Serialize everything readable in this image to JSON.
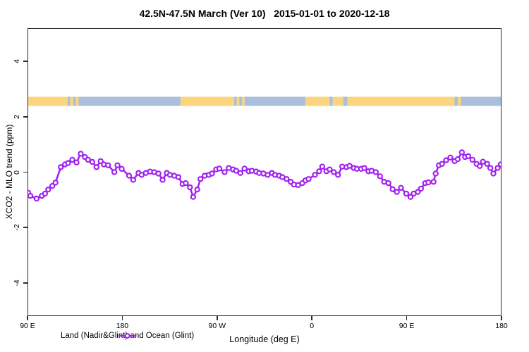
{
  "title": "42.5N-47.5N March (Ver 10)   2015-01-01 to 2020-12-18",
  "legend": {
    "label": "Land (Nadir&Glint) and Ocean (Glint)"
  },
  "colors": {
    "series": "#A020F0",
    "marker_fill": "#ffffff",
    "land_band": "#FAD57E",
    "ocean_band": "#A9BFDC",
    "axis": "#2d2d2d",
    "background": "#ffffff"
  },
  "chart_data": {
    "type": "line",
    "title": "42.5N-47.5N March (Ver 10)   2015-01-01 to 2020-12-18",
    "xlabel": "Longitude (deg E)",
    "ylabel": "XCO2 - MLO trend (ppm)",
    "xlim": [
      90,
      540
    ],
    "ylim": [
      -5.2,
      5.2
    ],
    "grid": false,
    "legend_position": "bottom-left-inside",
    "x_ticks": [
      {
        "pos": 90,
        "label": "90 E"
      },
      {
        "pos": 180,
        "label": "180"
      },
      {
        "pos": 270,
        "label": "90 W"
      },
      {
        "pos": 360,
        "label": "0"
      },
      {
        "pos": 450,
        "label": "90 E"
      },
      {
        "pos": 540,
        "label": "180"
      }
    ],
    "y_ticks": [
      {
        "pos": -4,
        "label": "-4"
      },
      {
        "pos": -2,
        "label": "-2"
      },
      {
        "pos": 0,
        "label": "0"
      },
      {
        "pos": 2,
        "label": "2"
      },
      {
        "pos": 4,
        "label": "4"
      }
    ],
    "surface_type_band": {
      "center_value": 2.57,
      "half_height_value": 0.165,
      "legend": {
        "land": "land_band",
        "ocean": "ocean_band"
      },
      "segments": [
        {
          "from": 90,
          "to": 127.5,
          "type": "land"
        },
        {
          "from": 127.5,
          "to": 130,
          "type": "ocean"
        },
        {
          "from": 130,
          "to": 133,
          "type": "land"
        },
        {
          "from": 133,
          "to": 135.5,
          "type": "ocean"
        },
        {
          "from": 135.5,
          "to": 138,
          "type": "land"
        },
        {
          "from": 138,
          "to": 235,
          "type": "ocean"
        },
        {
          "from": 235,
          "to": 286,
          "type": "land"
        },
        {
          "from": 286,
          "to": 288.5,
          "type": "ocean"
        },
        {
          "from": 288.5,
          "to": 291,
          "type": "land"
        },
        {
          "from": 291,
          "to": 293.5,
          "type": "ocean"
        },
        {
          "from": 293.5,
          "to": 296,
          "type": "land"
        },
        {
          "from": 296,
          "to": 354,
          "type": "ocean"
        },
        {
          "from": 354,
          "to": 377,
          "type": "land"
        },
        {
          "from": 377,
          "to": 380,
          "type": "ocean"
        },
        {
          "from": 380,
          "to": 390,
          "type": "land"
        },
        {
          "from": 390,
          "to": 394,
          "type": "ocean"
        },
        {
          "from": 394,
          "to": 496,
          "type": "land"
        },
        {
          "from": 496,
          "to": 499,
          "type": "ocean"
        },
        {
          "from": 499,
          "to": 502,
          "type": "land"
        },
        {
          "from": 502,
          "to": 540,
          "type": "ocean"
        }
      ]
    },
    "series": [
      {
        "name": "Land (Nadir&Glint) and Ocean (Glint)",
        "marker": "open-circle",
        "points": [
          [
            90,
            -0.75
          ],
          [
            92,
            -0.86
          ],
          [
            98,
            -0.96
          ],
          [
            103,
            -0.86
          ],
          [
            106,
            -0.78
          ],
          [
            109,
            -0.63
          ],
          [
            113,
            -0.5
          ],
          [
            116,
            -0.38
          ],
          [
            121,
            0.18
          ],
          [
            125,
            0.28
          ],
          [
            128,
            0.33
          ],
          [
            132,
            0.45
          ],
          [
            136,
            0.35
          ],
          [
            140,
            0.67
          ],
          [
            144,
            0.55
          ],
          [
            147,
            0.45
          ],
          [
            151,
            0.37
          ],
          [
            155,
            0.18
          ],
          [
            159,
            0.4
          ],
          [
            162,
            0.28
          ],
          [
            166,
            0.25
          ],
          [
            172,
            0.0
          ],
          [
            175,
            0.25
          ],
          [
            179,
            0.12
          ],
          [
            186,
            -0.13
          ],
          [
            190,
            -0.28
          ],
          [
            195,
            -0.03
          ],
          [
            198,
            -0.1
          ],
          [
            202,
            -0.03
          ],
          [
            206,
            0.02
          ],
          [
            210,
            0.0
          ],
          [
            214,
            -0.05
          ],
          [
            218,
            -0.28
          ],
          [
            222,
            -0.03
          ],
          [
            225,
            -0.1
          ],
          [
            229,
            -0.13
          ],
          [
            233,
            -0.18
          ],
          [
            237,
            -0.43
          ],
          [
            240,
            -0.4
          ],
          [
            244,
            -0.55
          ],
          [
            247,
            -0.9
          ],
          [
            251,
            -0.63
          ],
          [
            254,
            -0.25
          ],
          [
            258,
            -0.13
          ],
          [
            262,
            -0.1
          ],
          [
            265,
            -0.05
          ],
          [
            269,
            0.1
          ],
          [
            272,
            0.13
          ],
          [
            277,
            0.0
          ],
          [
            281,
            0.15
          ],
          [
            285,
            0.1
          ],
          [
            288,
            0.05
          ],
          [
            292,
            -0.03
          ],
          [
            296,
            0.13
          ],
          [
            300,
            0.03
          ],
          [
            303,
            0.05
          ],
          [
            307,
            0.02
          ],
          [
            310,
            -0.03
          ],
          [
            314,
            -0.05
          ],
          [
            318,
            -0.1
          ],
          [
            322,
            -0.03
          ],
          [
            325,
            -0.1
          ],
          [
            329,
            -0.13
          ],
          [
            332,
            -0.18
          ],
          [
            336,
            -0.25
          ],
          [
            340,
            -0.35
          ],
          [
            343,
            -0.45
          ],
          [
            347,
            -0.47
          ],
          [
            351,
            -0.4
          ],
          [
            354,
            -0.3
          ],
          [
            357,
            -0.25
          ],
          [
            363,
            -0.1
          ],
          [
            367,
            0.03
          ],
          [
            370,
            0.2
          ],
          [
            374,
            0.03
          ],
          [
            377,
            0.1
          ],
          [
            381,
            0.0
          ],
          [
            385,
            -0.1
          ],
          [
            389,
            0.2
          ],
          [
            393,
            0.18
          ],
          [
            396,
            0.23
          ],
          [
            400,
            0.15
          ],
          [
            403,
            0.12
          ],
          [
            407,
            0.12
          ],
          [
            410,
            0.15
          ],
          [
            414,
            0.03
          ],
          [
            417,
            0.05
          ],
          [
            421,
            0.0
          ],
          [
            425,
            -0.15
          ],
          [
            429,
            -0.35
          ],
          [
            433,
            -0.4
          ],
          [
            437,
            -0.62
          ],
          [
            441,
            -0.72
          ],
          [
            445,
            -0.57
          ],
          [
            450,
            -0.78
          ],
          [
            454,
            -0.9
          ],
          [
            457,
            -0.78
          ],
          [
            461,
            -0.72
          ],
          [
            464,
            -0.6
          ],
          [
            468,
            -0.4
          ],
          [
            471,
            -0.37
          ],
          [
            476,
            -0.35
          ],
          [
            478,
            -0.05
          ],
          [
            481,
            0.25
          ],
          [
            484,
            0.3
          ],
          [
            488,
            0.43
          ],
          [
            492,
            0.53
          ],
          [
            496,
            0.4
          ],
          [
            499,
            0.47
          ],
          [
            503,
            0.72
          ],
          [
            506,
            0.55
          ],
          [
            509,
            0.58
          ],
          [
            513,
            0.45
          ],
          [
            517,
            0.3
          ],
          [
            520,
            0.22
          ],
          [
            523,
            0.38
          ],
          [
            527,
            0.3
          ],
          [
            530,
            0.15
          ],
          [
            533,
            -0.05
          ],
          [
            537,
            0.15
          ],
          [
            540,
            0.28
          ]
        ]
      }
    ]
  }
}
